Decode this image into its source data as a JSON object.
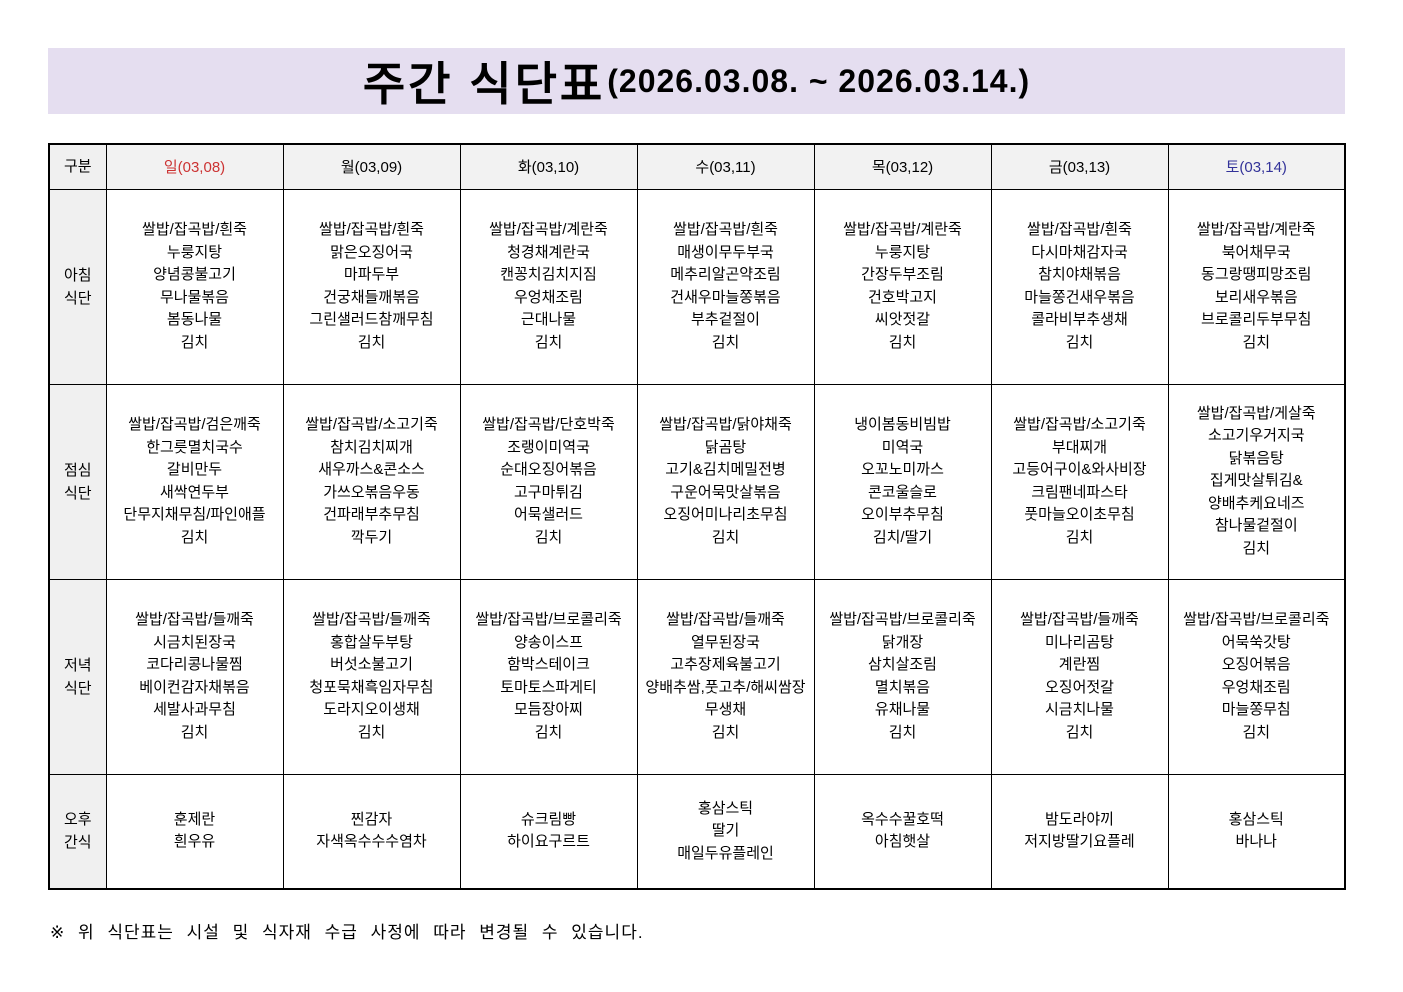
{
  "title": {
    "main": "주간 식단표",
    "period": "(2026.03.08.  ~  2026.03.14.)"
  },
  "colors": {
    "banner_bg": "#e5def0",
    "header_bg": "#f0f0f0",
    "sunday_text": "#cc3333",
    "saturday_text": "#333399",
    "weekday_text": "#000000",
    "border": "#000000"
  },
  "table": {
    "corner_label": "구분",
    "day_headers": [
      {
        "label": "일(03,08)",
        "color": "#cc3333"
      },
      {
        "label": "월(03,09)",
        "color": "#000000"
      },
      {
        "label": "화(03,10)",
        "color": "#000000"
      },
      {
        "label": "수(03,11)",
        "color": "#000000"
      },
      {
        "label": "목(03,12)",
        "color": "#000000"
      },
      {
        "label": "금(03,13)",
        "color": "#000000"
      },
      {
        "label": "토(03,14)",
        "color": "#333399"
      }
    ],
    "rows": [
      {
        "id": "breakfast",
        "label_lines": [
          "아침",
          "식단"
        ],
        "snack": false,
        "cells": [
          [
            "쌀밥/잡곡밥/흰죽",
            "누룽지탕",
            "양념콩불고기",
            "무나물볶음",
            "봄동나물",
            "김치"
          ],
          [
            "쌀밥/잡곡밥/흰죽",
            "맑은오징어국",
            "마파두부",
            "건궁채들깨볶음",
            "그린샐러드참깨무침",
            "김치"
          ],
          [
            "쌀밥/잡곡밥/계란죽",
            "청경채계란국",
            "캔꽁치김치지짐",
            "우엉채조림",
            "근대나물",
            "김치"
          ],
          [
            "쌀밥/잡곡밥/흰죽",
            "매생이무두부국",
            "메추리알곤약조림",
            "건새우마늘쫑볶음",
            "부추겉절이",
            "김치"
          ],
          [
            "쌀밥/잡곡밥/계란죽",
            "누룽지탕",
            "간장두부조림",
            "건호박고지",
            "씨앗젓갈",
            "김치"
          ],
          [
            "쌀밥/잡곡밥/흰죽",
            "다시마채감자국",
            "참치야채볶음",
            "마늘쫑건새우볶음",
            "콜라비부추생채",
            "김치"
          ],
          [
            "쌀밥/잡곡밥/계란죽",
            "북어채무국",
            "동그랑땡피망조림",
            "보리새우볶음",
            "브로콜리두부무침",
            "김치"
          ]
        ]
      },
      {
        "id": "lunch",
        "label_lines": [
          "점심",
          "식단"
        ],
        "snack": false,
        "cells": [
          [
            "쌀밥/잡곡밥/검은깨죽",
            "한그릇멸치국수",
            "갈비만두",
            "새싹연두부",
            "단무지채무침/파인애플",
            "김치"
          ],
          [
            "쌀밥/잡곡밥/소고기죽",
            "참치김치찌개",
            "새우까스&콘소스",
            "가쓰오볶음우동",
            "건파래부추무침",
            "깍두기"
          ],
          [
            "쌀밥/잡곡밥/단호박죽",
            "조랭이미역국",
            "순대오징어볶음",
            "고구마튀김",
            "어묵샐러드",
            "김치"
          ],
          [
            "쌀밥/잡곡밥/닭야채죽",
            "닭곰탕",
            "고기&김치메밀전병",
            "구운어묵맛살볶음",
            "오징어미나리초무침",
            "김치"
          ],
          [
            "냉이봄동비빔밥",
            "미역국",
            "오꼬노미까스",
            "콘코울슬로",
            "오이부추무침",
            "김치/딸기"
          ],
          [
            "쌀밥/잡곡밥/소고기죽",
            "부대찌개",
            "고등어구이&와사비장",
            "크림팬네파스타",
            "풋마늘오이초무침",
            "김치"
          ],
          [
            "쌀밥/잡곡밥/게살죽",
            "소고기우거지국",
            "닭볶음탕",
            "집게맛살튀김&",
            "양배추케요네즈",
            "참나물겉절이",
            "김치"
          ]
        ]
      },
      {
        "id": "dinner",
        "label_lines": [
          "저녁",
          "식단"
        ],
        "snack": false,
        "cells": [
          [
            "쌀밥/잡곡밥/들깨죽",
            "시금치된장국",
            "코다리콩나물찜",
            "베이컨감자채볶음",
            "세발사과무침",
            "김치"
          ],
          [
            "쌀밥/잡곡밥/들깨죽",
            "홍합살두부탕",
            "버섯소불고기",
            "청포묵채흑임자무침",
            "도라지오이생채",
            "김치"
          ],
          [
            "쌀밥/잡곡밥/브로콜리죽",
            "양송이스프",
            "함박스테이크",
            "토마토스파게티",
            "모듬장아찌",
            "김치"
          ],
          [
            "쌀밥/잡곡밥/들깨죽",
            "열무된장국",
            "고추장제육불고기",
            "양배추쌈,풋고추/해씨쌈장",
            "무생채",
            "김치"
          ],
          [
            "쌀밥/잡곡밥/브로콜리죽",
            "닭개장",
            "삼치살조림",
            "멸치볶음",
            "유채나물",
            "김치"
          ],
          [
            "쌀밥/잡곡밥/들깨죽",
            "미나리곰탕",
            "계란찜",
            "오징어젓갈",
            "시금치나물",
            "김치"
          ],
          [
            "쌀밥/잡곡밥/브로콜리죽",
            "어묵쑥갓탕",
            "오징어볶음",
            "우엉채조림",
            "마늘쫑무침",
            "김치"
          ]
        ]
      },
      {
        "id": "snack",
        "label_lines": [
          "오후",
          "간식"
        ],
        "snack": true,
        "cells": [
          [
            "훈제란",
            "흰우유"
          ],
          [
            "찐감자",
            "자색옥수수수염차"
          ],
          [
            "슈크림빵",
            "하이요구르트"
          ],
          [
            "홍삼스틱",
            "딸기",
            "매일두유플레인"
          ],
          [
            "옥수수꿀호떡",
            "아침햇살"
          ],
          [
            "밤도라야끼",
            "저지방딸기요플레"
          ],
          [
            "홍삼스틱",
            "바나나"
          ]
        ]
      }
    ]
  },
  "footnote": "※ 위 식단표는 시설 및 식자재 수급 사정에 따라 변경될 수 있습니다."
}
